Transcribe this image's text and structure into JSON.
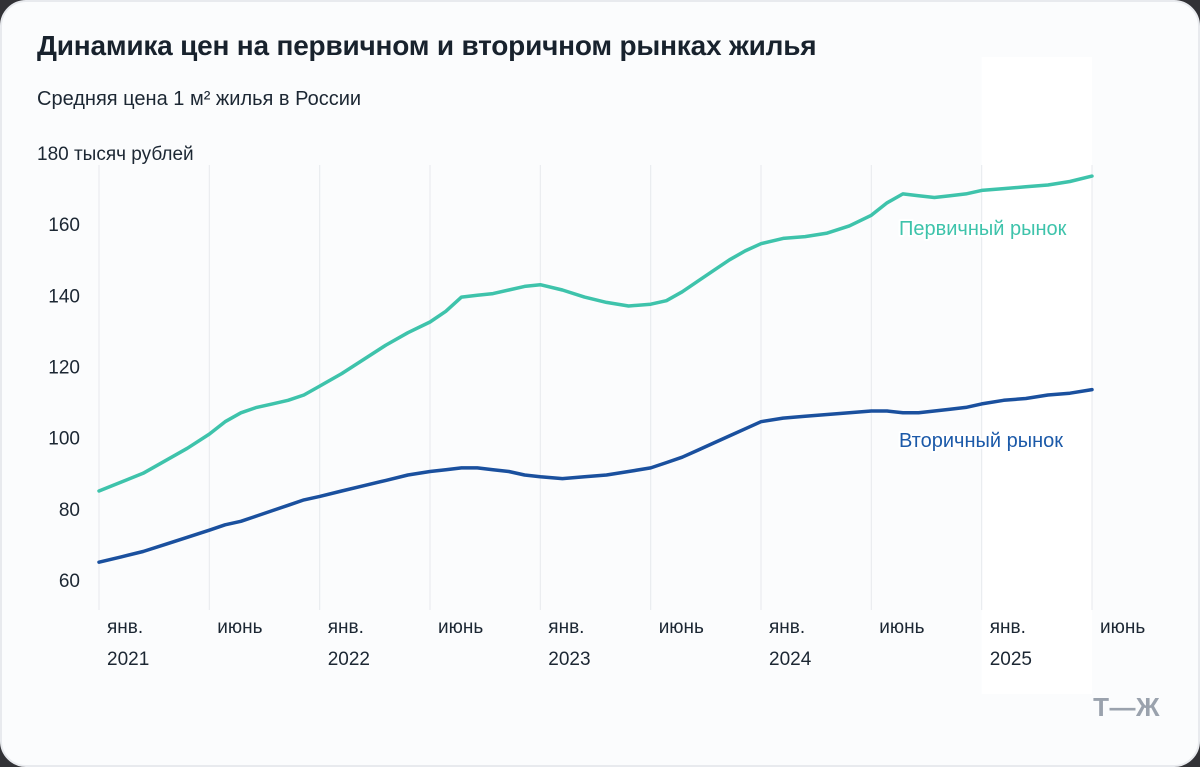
{
  "header": {
    "title": "Динамика цен на первичном и вторичном рынках жилья",
    "subtitle": "Средняя цена 1 м² жилья в России"
  },
  "footer": {
    "logo": "Т—Ж"
  },
  "chart_data": {
    "type": "line",
    "title": "Динамика цен на первичном и вторичном рынках жилья",
    "subtitle": "Средняя цена 1 м² жилья в России",
    "y_unit_label": "180 тысяч рублей",
    "ylabel": "тысяч рублей",
    "y_ticks": [
      60,
      80,
      100,
      120,
      140,
      160
    ],
    "ylim": [
      60,
      180
    ],
    "grid": "vertical-only",
    "x_tick_labels": [
      "янв.",
      "июнь",
      "янв.",
      "июнь",
      "янв.",
      "июнь",
      "янв.",
      "июнь",
      "янв.",
      "июнь"
    ],
    "x_tick_years": [
      "2021",
      null,
      "2022",
      null,
      "2023",
      null,
      "2024",
      null,
      "2025",
      null
    ],
    "tick_months": [
      0,
      5,
      12,
      17,
      24,
      29,
      36,
      41,
      48,
      53
    ],
    "highlight_band_months": [
      48,
      53
    ],
    "x_interval": "monthly",
    "series": [
      {
        "name": "Первичный рынок",
        "color": "#3ec3ab",
        "label_color": "#3ec3ab",
        "values": [
          85,
          87.5,
          90,
          93.5,
          97,
          101,
          104.5,
          107,
          108.5,
          109.5,
          110.5,
          112,
          114.5,
          118,
          122,
          126,
          129.5,
          132.5,
          135.5,
          139.5,
          140,
          140.5,
          141.5,
          142.5,
          143,
          141.5,
          139.5,
          138,
          137,
          137.5,
          138.5,
          141,
          144,
          147,
          150,
          152.5,
          154.5,
          156,
          156.5,
          157.5,
          159.5,
          162.5,
          166,
          168.5,
          168,
          167.5,
          168,
          168.5,
          169.5,
          170,
          170.5,
          171,
          172,
          173.5
        ]
      },
      {
        "name": "Вторичный рынок",
        "color": "#1a509e",
        "label_color": "#1c5aa9",
        "values": [
          65,
          66.5,
          68,
          70,
          72,
          74,
          75.5,
          76.5,
          78,
          79.5,
          81,
          82.5,
          83.5,
          85,
          86.5,
          88,
          89.5,
          90.5,
          91,
          91.5,
          91.5,
          91,
          90.5,
          89.5,
          89,
          88.5,
          89,
          89.5,
          90.5,
          91.5,
          93,
          94.5,
          96.5,
          98.5,
          100.5,
          102.5,
          104.5,
          105.5,
          106,
          106.5,
          107,
          107.5,
          107.5,
          107,
          107,
          107.5,
          108,
          108.5,
          109.5,
          110.5,
          111,
          112,
          112.5,
          113.5
        ]
      }
    ]
  }
}
